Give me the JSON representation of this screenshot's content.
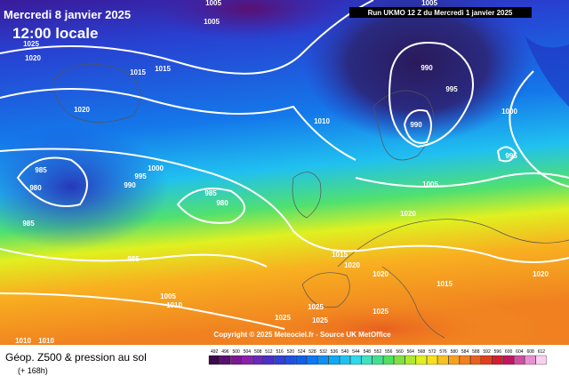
{
  "header": {
    "date": "Mercredi 8 janvier 2025",
    "time": "12:00 locale",
    "run": "Run UKMO 12 Z du Mercredi 1 janvier 2025",
    "copyright": "Copyright © 2025 Meteociel.fr - Source UK MetOffice"
  },
  "footer": {
    "title": "Géop. Z500 & pression au sol",
    "lead": "(+ 168h)"
  },
  "isobar_labels": [
    1005,
    1005,
    1025,
    1020,
    1015,
    1015,
    1020,
    990,
    995,
    1000,
    990,
    1010,
    985,
    980,
    995,
    990,
    1000,
    985,
    980,
    1005,
    995,
    1020,
    985,
    985,
    1015,
    1020,
    1020,
    1015,
    1020,
    1005,
    1010,
    1025,
    1025,
    1025,
    1025,
    1010,
    1010,
    1005
  ],
  "colorbar": {
    "labels": [
      492,
      496,
      500,
      504,
      508,
      512,
      516,
      520,
      524,
      528,
      532,
      536,
      540,
      544,
      548,
      552,
      556,
      560,
      564,
      568,
      572,
      576,
      580,
      584,
      588,
      592,
      596,
      600,
      604,
      608,
      612
    ],
    "colors": [
      "#3a0a4a",
      "#5a1070",
      "#7a1890",
      "#8a20a8",
      "#6a28b8",
      "#4a30c8",
      "#3040d8",
      "#2050e0",
      "#1060e8",
      "#1078f0",
      "#1090f0",
      "#10a8f0",
      "#20c0f0",
      "#30d8e8",
      "#40e0c0",
      "#40e090",
      "#50e060",
      "#80e040",
      "#b0e830",
      "#e0f020",
      "#f8e020",
      "#f8c020",
      "#f8a020",
      "#f08020",
      "#e86020",
      "#e04020",
      "#d02030",
      "#c01860",
      "#d050a0",
      "#e890d0",
      "#f8d0f0"
    ]
  }
}
